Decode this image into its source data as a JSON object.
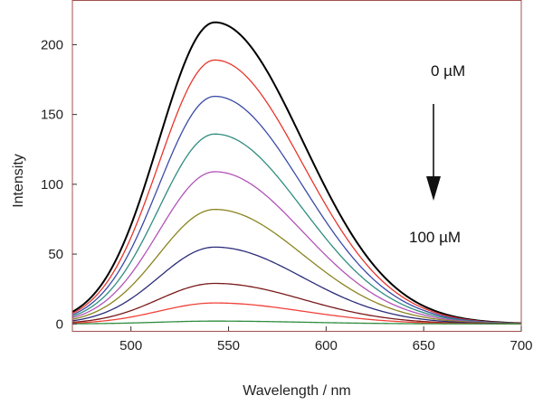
{
  "chart_data": {
    "type": "line",
    "title": "",
    "xlabel": "Wavelength / nm",
    "ylabel": "Intensity",
    "xlim": [
      470,
      700
    ],
    "ylim": [
      -5,
      232
    ],
    "xticks": [
      500,
      550,
      600,
      650,
      700
    ],
    "yticks": [
      0,
      50,
      100,
      150,
      200
    ],
    "grid": false,
    "frame_color": "#a0524f",
    "series_shape": {
      "peak_wavelength": 543,
      "rise_width_nm": 33,
      "decay_width_nm": 45,
      "baseline_at_470": 0.04
    },
    "series": [
      {
        "name": "0 µM",
        "peak": 216,
        "color": "#000000"
      },
      {
        "name": "series 2",
        "peak": 189,
        "color": "#e8352c"
      },
      {
        "name": "series 3",
        "peak": 163,
        "color": "#3b4ba8"
      },
      {
        "name": "series 4",
        "peak": 136,
        "color": "#2f8c80"
      },
      {
        "name": "series 5",
        "peak": 109,
        "color": "#b154b8"
      },
      {
        "name": "series 6",
        "peak": 82,
        "color": "#8a8420"
      },
      {
        "name": "series 7",
        "peak": 55,
        "color": "#2c2c7a"
      },
      {
        "name": "series 8",
        "peak": 29,
        "color": "#7a1a1a"
      },
      {
        "name": "series 9",
        "peak": 15,
        "color": "#f0413a"
      },
      {
        "name": "100 µM",
        "peak": 2,
        "color": "#2e8c3e"
      }
    ],
    "annotations": {
      "top_label": "0 µM",
      "bottom_label": "100 µM",
      "arrow_direction": "down"
    }
  }
}
